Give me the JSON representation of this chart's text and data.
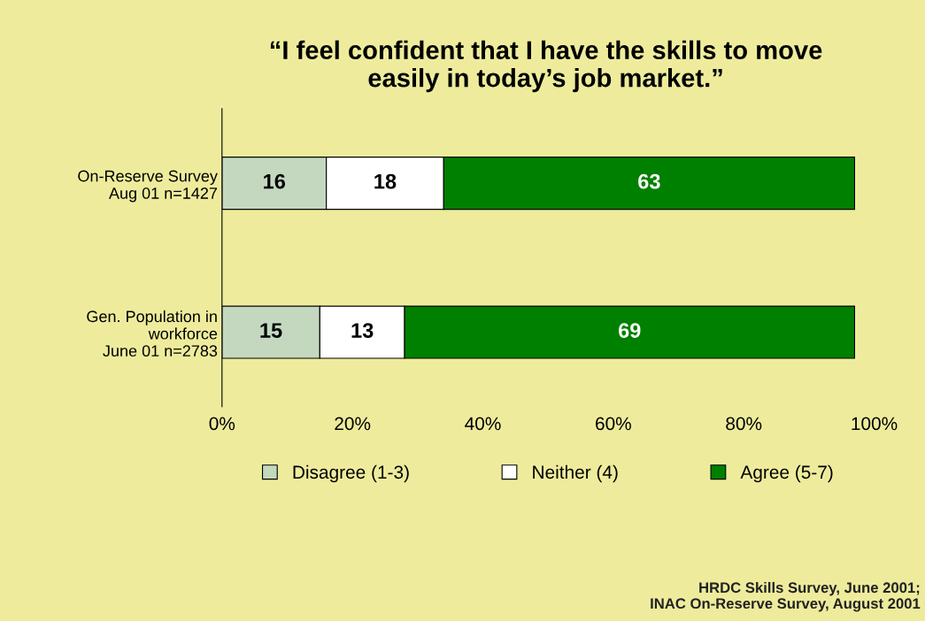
{
  "chart_data": {
    "type": "bar",
    "orientation": "horizontal",
    "stacked": true,
    "title": "“I feel confident that I have the skills to move\neasily in today’s job market.”",
    "categories": [
      "On-Reserve Survey\nAug 01 n=1427",
      "Gen. Population in\nworkforce\nJune 01 n=2783"
    ],
    "series": [
      {
        "name": "Disagree (1-3)",
        "color": "#c4d8c0",
        "values": [
          16,
          15
        ]
      },
      {
        "name": "Neither (4)",
        "color": "#ffffff",
        "values": [
          18,
          13
        ]
      },
      {
        "name": "Agree (5-7)",
        "color": "#008000",
        "values": [
          63,
          69
        ]
      }
    ],
    "xlim": [
      0,
      100
    ],
    "xticks": [
      {
        "value": 0,
        "label": "0%"
      },
      {
        "value": 20,
        "label": "20%"
      },
      {
        "value": 40,
        "label": "40%"
      },
      {
        "value": 60,
        "label": "60%"
      },
      {
        "value": 80,
        "label": "80%"
      },
      {
        "value": 100,
        "label": "100%"
      }
    ],
    "data_labels": true,
    "legend": "bottom",
    "grid": false,
    "annotations": [
      "HRDC Skills Survey, June 2001;\nINAC On-Reserve Survey, August 2001"
    ]
  }
}
